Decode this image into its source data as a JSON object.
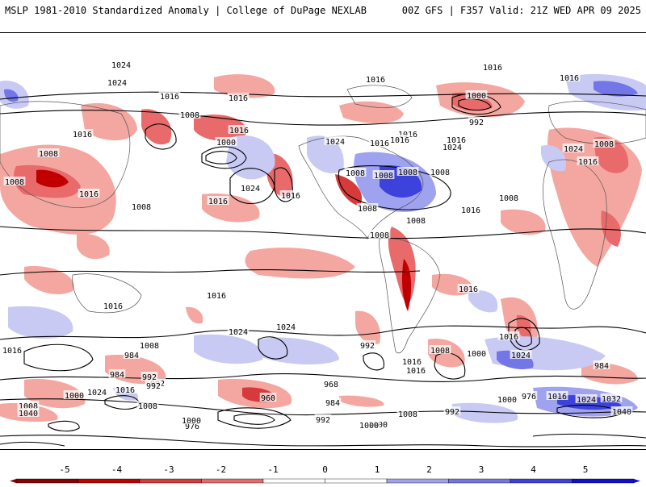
{
  "header": {
    "left_title": "MSLP 1981-2010 Standardized Anomaly | College of DuPage NEXLAB",
    "right_title": "00Z GFS | F357 Valid: 21Z WED APR 09 2025"
  },
  "colorbar": {
    "ticks": [
      "-5",
      "-4",
      "-3",
      "-2",
      "-1",
      "0",
      "1",
      "2",
      "3",
      "4",
      "5"
    ],
    "colors": [
      "#8b0000",
      "#c00000",
      "#d63a3a",
      "#e86a6a",
      "#f4a7a0",
      "#ffffff",
      "#c9caf4",
      "#9fa2ee",
      "#7276e6",
      "#3d42dd",
      "#1010d0"
    ]
  },
  "contour_labels": [
    "1024",
    "1024",
    "1016",
    "1016",
    "1008",
    "1000",
    "1016",
    "1016",
    "1008",
    "1024",
    "1016",
    "1024",
    "1008",
    "1008",
    "1016",
    "1016",
    "1008",
    "1016",
    "1008",
    "1024",
    "1016",
    "1000",
    "992",
    "1016",
    "1016",
    "1024",
    "1016",
    "1008",
    "1008",
    "1016",
    "1008",
    "1008",
    "1008",
    "1016",
    "1008",
    "1016",
    "1016",
    "1008",
    "1016",
    "1016",
    "1024",
    "992",
    "1016",
    "1024",
    "1008",
    "1000",
    "984",
    "984",
    "992",
    "976",
    "968",
    "960",
    "984",
    "992",
    "1000",
    "1024",
    "1000",
    "1008",
    "1000",
    "992",
    "1016",
    "1024",
    "1032",
    "976",
    "1040",
    "984",
    "1008",
    "1040",
    "1000",
    "1008",
    "992",
    "1016",
    "1016",
    "1024",
    "1000",
    "1016",
    "1016",
    "992",
    "1008",
    "1016"
  ]
}
